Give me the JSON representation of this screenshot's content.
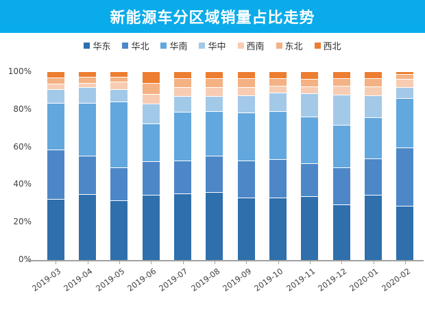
{
  "banner": {
    "title": "新能源车分区域销量占比走势",
    "bg_color": "#0aabea",
    "text_color": "#ffffff"
  },
  "axis": {
    "line_color": "#a0a0a0",
    "label_color": "#404040"
  },
  "chart_data": {
    "type": "bar",
    "stacked": true,
    "percent": true,
    "title": "新能源车分区域销量占比走势",
    "xlabel": "",
    "ylabel": "",
    "ylim": [
      0,
      100
    ],
    "yticks": [
      "0%",
      "20%",
      "40%",
      "60%",
      "80%",
      "100%"
    ],
    "grid": false,
    "legend_position": "top",
    "categories": [
      "2019-03",
      "2019-04",
      "2019-05",
      "2019-06",
      "2019-07",
      "2019-08",
      "2019-09",
      "2019-10",
      "2019-11",
      "2019-12",
      "2020-01",
      "2020-02"
    ],
    "series": [
      {
        "name": "华东",
        "color": "#2e6fac",
        "values": [
          33.0,
          35.5,
          32.0,
          35.0,
          36.0,
          36.5,
          33.5,
          33.5,
          34.5,
          30.0,
          35.0,
          29.0
        ]
      },
      {
        "name": "华北",
        "color": "#4d87c7",
        "values": [
          26.5,
          20.5,
          17.5,
          18.0,
          17.5,
          19.5,
          20.0,
          20.5,
          17.5,
          19.5,
          19.5,
          31.5
        ]
      },
      {
        "name": "华南",
        "color": "#62a7dd",
        "values": [
          25.0,
          28.5,
          35.5,
          20.0,
          26.0,
          24.0,
          25.5,
          26.0,
          25.0,
          23.0,
          22.0,
          26.5
        ]
      },
      {
        "name": "华中",
        "color": "#a3c9e9",
        "values": [
          7.0,
          8.0,
          6.5,
          10.5,
          8.0,
          7.5,
          9.0,
          9.5,
          12.0,
          16.0,
          11.5,
          5.5
        ]
      },
      {
        "name": "西南",
        "color": "#f8ccb2",
        "values": [
          2.5,
          2.0,
          3.5,
          5.0,
          4.5,
          4.5,
          4.0,
          3.5,
          3.5,
          4.5,
          4.5,
          4.0
        ]
      },
      {
        "name": "东北",
        "color": "#f4b183",
        "values": [
          3.0,
          3.0,
          2.5,
          5.5,
          4.5,
          4.5,
          4.5,
          3.8,
          3.8,
          3.7,
          4.0,
          2.2
        ]
      },
      {
        "name": "西北",
        "color": "#ed7d31",
        "values": [
          3.0,
          2.5,
          2.5,
          6.0,
          3.5,
          3.5,
          3.5,
          3.2,
          3.7,
          3.3,
          3.5,
          1.3
        ]
      }
    ]
  }
}
